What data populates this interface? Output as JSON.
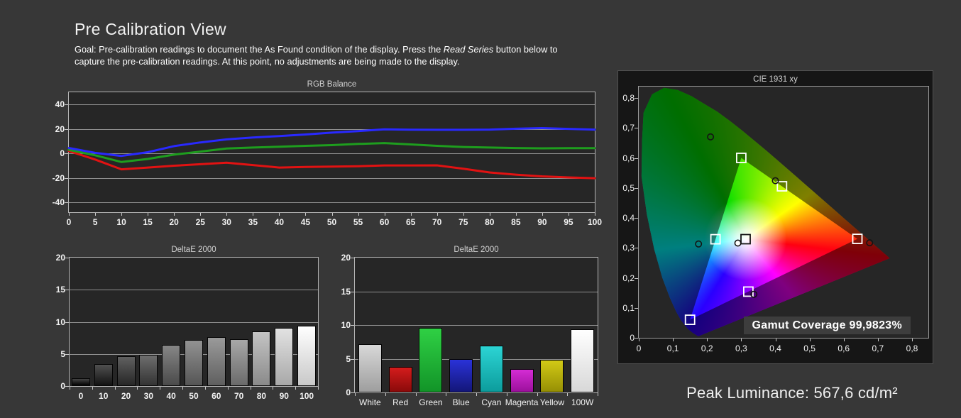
{
  "header": {
    "title": "Pre Calibration View",
    "goal_line1_pre": "Goal: Pre-calibration readings to document the As Found condition of the display. Press the ",
    "goal_line1_italic": "Read Series",
    "goal_line1_post": " button below to",
    "goal_line2": "capture the pre-calibration readings. At this point, no adjustments are being made to the display."
  },
  "footer": {
    "peak_luminance": "Peak Luminance: 567,6 cd/m²"
  },
  "colors": {
    "page_bg": "#373737",
    "plot_bg": "#262626",
    "grid": "#8f8f8f",
    "plot_border": "#b4b4b4",
    "red_line": "#e11212",
    "green_line": "#1e9e1e",
    "blue_line": "#2929ff"
  },
  "chart_data": [
    {
      "id": "rgb_balance",
      "type": "line",
      "title": "RGB Balance",
      "x": [
        0,
        5,
        10,
        15,
        20,
        25,
        30,
        35,
        40,
        45,
        50,
        55,
        60,
        65,
        70,
        75,
        80,
        85,
        90,
        95,
        100
      ],
      "xlim": [
        0,
        100
      ],
      "ylim": [
        -48,
        50
      ],
      "grid": "on",
      "gridlines": [
        40,
        20,
        0,
        -20,
        -40
      ],
      "ytick_labels": [
        "40",
        "20",
        "0",
        "-20",
        "-40"
      ],
      "series": [
        {
          "name": "red",
          "color": "#e11212",
          "values": [
            2,
            -5,
            -13,
            -11.5,
            -10,
            -8.8,
            -7.5,
            -9.5,
            -11.5,
            -11,
            -10.8,
            -10.4,
            -9.8,
            -9.8,
            -9.7,
            -12.5,
            -15.5,
            -17.3,
            -18.7,
            -19.6,
            -20.2
          ]
        },
        {
          "name": "green",
          "color": "#1e9e1e",
          "values": [
            3,
            -1.5,
            -7,
            -4.5,
            -1,
            1.5,
            4,
            4.8,
            5.5,
            6.2,
            6.8,
            7.8,
            8.5,
            7.4,
            6.2,
            5.3,
            4.8,
            4.4,
            4.2,
            4.3,
            4.3
          ]
        },
        {
          "name": "blue",
          "color": "#2929ff",
          "values": [
            4.5,
            0.5,
            -2,
            1,
            6,
            9,
            11.5,
            13,
            14.2,
            15.5,
            17,
            18.3,
            19.7,
            19.4,
            19.3,
            19.3,
            19.5,
            20.2,
            20.7,
            20.1,
            19.5
          ]
        }
      ]
    },
    {
      "id": "deltae_grayscale",
      "type": "bar",
      "title": "DeltaE 2000",
      "categories": [
        "0",
        "10",
        "20",
        "30",
        "40",
        "50",
        "60",
        "70",
        "80",
        "90",
        "100"
      ],
      "values": [
        1.2,
        3.4,
        4.6,
        4.9,
        6.4,
        7.2,
        7.6,
        7.3,
        8.5,
        9.1,
        9.4
      ],
      "ylim": [
        0,
        20
      ],
      "gridlines": [
        5,
        10,
        15
      ],
      "ytick_labels": [
        "0",
        "5",
        "10",
        "15",
        "20"
      ],
      "bar_colors": [
        [
          "#444444",
          "#000000"
        ],
        [
          "#505050",
          "#121212"
        ],
        [
          "#606060",
          "#262626"
        ],
        [
          "#6e6e6e",
          "#333333"
        ],
        [
          "#868686",
          "#4a4a4a"
        ],
        [
          "#929292",
          "#555555"
        ],
        [
          "#9a9a9a",
          "#5f5f5f"
        ],
        [
          "#a8a8a8",
          "#6a6a6a"
        ],
        [
          "#c4c4c4",
          "#8a8a8a"
        ],
        [
          "#e2e2e2",
          "#a8a8a8"
        ],
        [
          "#ffffff",
          "#c8c8c8"
        ]
      ]
    },
    {
      "id": "deltae_colors",
      "type": "bar",
      "title": "DeltaE 2000",
      "categories": [
        "White",
        "Red",
        "Green",
        "Blue",
        "Cyan",
        "Magenta",
        "Yellow",
        "100W"
      ],
      "values": [
        7.2,
        3.8,
        9.6,
        4.9,
        7.0,
        3.5,
        4.8,
        9.4
      ],
      "ylim": [
        0,
        20
      ],
      "gridlines": [
        5,
        10,
        15
      ],
      "ytick_labels": [
        "0",
        "5",
        "10",
        "15",
        "20"
      ],
      "bar_colors": [
        [
          "#d8d8d8",
          "#9e9e9e"
        ],
        [
          "#d41c1c",
          "#8a0a0a"
        ],
        [
          "#2fd044",
          "#129428"
        ],
        [
          "#2a32d8",
          "#131678"
        ],
        [
          "#2cd4d4",
          "#0c9c9c"
        ],
        [
          "#d42cd4",
          "#9c109c"
        ],
        [
          "#d2ca16",
          "#968f04"
        ],
        [
          "#ffffff",
          "#d8d8d8"
        ]
      ]
    },
    {
      "id": "cie_1931",
      "type": "scatter",
      "title": "CIE 1931 xy",
      "xlim": [
        0,
        0.848
      ],
      "ylim": [
        0,
        0.838
      ],
      "axis_ticks": [
        0,
        0.1,
        0.2,
        0.3,
        0.4,
        0.5,
        0.6,
        0.7,
        0.8
      ],
      "tick_labels": [
        "0",
        "0,1",
        "0,2",
        "0,3",
        "0,4",
        "0,5",
        "0,6",
        "0,7",
        "0,8"
      ],
      "gamut_triangle": {
        "red": [
          0.64,
          0.33
        ],
        "green": [
          0.3,
          0.6
        ],
        "blue": [
          0.15,
          0.06
        ]
      },
      "white_point": [
        0.3127,
        0.329
      ],
      "targets": [
        {
          "name": "white",
          "x": 0.3127,
          "y": 0.329,
          "stroke": "#141414"
        },
        {
          "name": "red",
          "x": 0.64,
          "y": 0.33,
          "stroke": "#ffffff"
        },
        {
          "name": "green",
          "x": 0.3,
          "y": 0.6,
          "stroke": "#ffffff"
        },
        {
          "name": "blue",
          "x": 0.15,
          "y": 0.06,
          "stroke": "#ffffff"
        },
        {
          "name": "cyan",
          "x": 0.2246,
          "y": 0.3287,
          "stroke": "#ffffff"
        },
        {
          "name": "magenta",
          "x": 0.3209,
          "y": 0.1542,
          "stroke": "#ffffff"
        },
        {
          "name": "yellow",
          "x": 0.4193,
          "y": 0.5053,
          "stroke": "#ffffff"
        }
      ],
      "measured": [
        {
          "name": "white",
          "x": 0.29,
          "y": 0.316,
          "fill": "#ffffff"
        },
        {
          "name": "red",
          "x": 0.676,
          "y": 0.317,
          "fill": "none"
        },
        {
          "name": "green",
          "x": 0.21,
          "y": 0.67,
          "fill": "none"
        },
        {
          "name": "cyan",
          "x": 0.175,
          "y": 0.313,
          "fill": "none"
        },
        {
          "name": "magenta",
          "x": 0.337,
          "y": 0.145,
          "fill": "none"
        },
        {
          "name": "yellow",
          "x": 0.4,
          "y": 0.524,
          "fill": "none"
        }
      ],
      "gamut_coverage": "Gamut Coverage 99,9823%"
    }
  ]
}
